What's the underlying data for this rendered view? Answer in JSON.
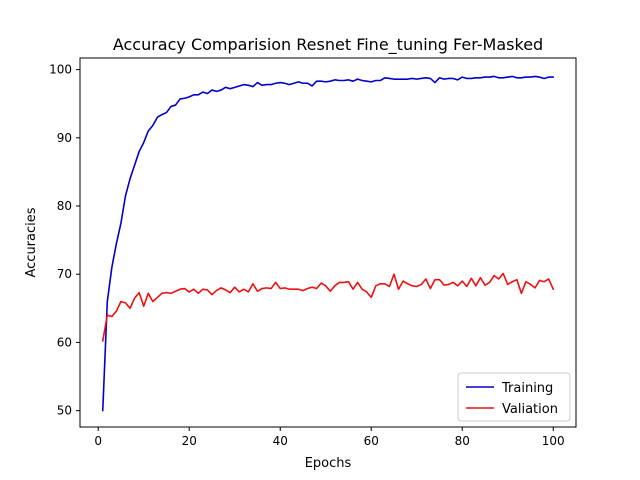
{
  "chart_data": {
    "type": "line",
    "title": "Accuracy Comparision Resnet Fine_tuning Fer-Masked",
    "xlabel": "Epochs",
    "ylabel": "Accuracies",
    "xlim": [
      -4,
      105
    ],
    "ylim": [
      47.6,
      101.7
    ],
    "xticks": [
      0,
      20,
      40,
      60,
      80,
      100
    ],
    "yticks": [
      50,
      60,
      70,
      80,
      90,
      100
    ],
    "grid": false,
    "legend_position": "lower-right",
    "series": [
      {
        "name": "Training",
        "color": "#0000cc",
        "x": [
          1,
          2,
          3,
          4,
          5,
          6,
          7,
          8,
          9,
          10,
          11,
          12,
          13,
          14,
          15,
          16,
          17,
          18,
          19,
          20,
          21,
          22,
          23,
          24,
          25,
          26,
          27,
          28,
          29,
          30,
          31,
          32,
          33,
          34,
          35,
          36,
          37,
          38,
          39,
          40,
          41,
          42,
          43,
          44,
          45,
          46,
          47,
          48,
          49,
          50,
          51,
          52,
          53,
          54,
          55,
          56,
          57,
          58,
          59,
          60,
          61,
          62,
          63,
          64,
          65,
          66,
          67,
          68,
          69,
          70,
          71,
          72,
          73,
          74,
          75,
          76,
          77,
          78,
          79,
          80,
          81,
          82,
          83,
          84,
          85,
          86,
          87,
          88,
          89,
          90,
          91,
          92,
          93,
          94,
          95,
          96,
          97,
          98,
          99,
          100
        ],
        "y": [
          50.0,
          66.0,
          71.0,
          74.5,
          77.5,
          81.5,
          84.0,
          86.0,
          88.0,
          89.3,
          91.0,
          91.8,
          93.0,
          93.4,
          93.7,
          94.6,
          94.8,
          95.7,
          95.8,
          96.0,
          96.3,
          96.3,
          96.7,
          96.5,
          97.0,
          96.8,
          97.0,
          97.4,
          97.2,
          97.4,
          97.6,
          97.8,
          97.7,
          97.5,
          98.1,
          97.7,
          97.8,
          97.8,
          98.0,
          98.1,
          98.0,
          97.8,
          98.0,
          98.2,
          98.0,
          98.0,
          97.6,
          98.3,
          98.3,
          98.2,
          98.3,
          98.5,
          98.4,
          98.4,
          98.5,
          98.3,
          98.6,
          98.4,
          98.3,
          98.2,
          98.4,
          98.4,
          98.8,
          98.7,
          98.6,
          98.6,
          98.6,
          98.6,
          98.7,
          98.6,
          98.7,
          98.8,
          98.7,
          98.1,
          98.8,
          98.6,
          98.7,
          98.7,
          98.5,
          98.9,
          98.7,
          98.7,
          98.8,
          98.8,
          98.9,
          98.9,
          99.0,
          98.8,
          98.8,
          98.9,
          99.0,
          98.8,
          98.8,
          98.9,
          98.9,
          99.0,
          98.9,
          98.7,
          98.9,
          98.9
        ]
      },
      {
        "name": "Valiation",
        "color": "#ee1111",
        "x": [
          1,
          2,
          3,
          4,
          5,
          6,
          7,
          8,
          9,
          10,
          11,
          12,
          13,
          14,
          15,
          16,
          17,
          18,
          19,
          20,
          21,
          22,
          23,
          24,
          25,
          26,
          27,
          28,
          29,
          30,
          31,
          32,
          33,
          34,
          35,
          36,
          37,
          38,
          39,
          40,
          41,
          42,
          43,
          44,
          45,
          46,
          47,
          48,
          49,
          50,
          51,
          52,
          53,
          54,
          55,
          56,
          57,
          58,
          59,
          60,
          61,
          62,
          63,
          64,
          65,
          66,
          67,
          68,
          69,
          70,
          71,
          72,
          73,
          74,
          75,
          76,
          77,
          78,
          79,
          80,
          81,
          82,
          83,
          84,
          85,
          86,
          87,
          88,
          89,
          90,
          91,
          92,
          93,
          94,
          95,
          96,
          97,
          98,
          99,
          100
        ],
        "y": [
          60.2,
          64.0,
          63.8,
          64.6,
          66.0,
          65.8,
          65.0,
          66.5,
          67.3,
          65.3,
          67.2,
          66.0,
          66.6,
          67.2,
          67.3,
          67.2,
          67.5,
          67.8,
          67.9,
          67.4,
          67.8,
          67.2,
          67.8,
          67.7,
          67.0,
          67.6,
          68.0,
          67.7,
          67.3,
          68.1,
          67.4,
          67.8,
          67.4,
          68.6,
          67.5,
          67.9,
          68.0,
          67.9,
          68.8,
          67.9,
          68.0,
          67.8,
          67.8,
          67.8,
          67.6,
          67.9,
          68.1,
          67.9,
          68.7,
          68.3,
          67.5,
          68.3,
          68.8,
          68.8,
          68.9,
          67.8,
          68.8,
          67.8,
          67.4,
          66.6,
          68.3,
          68.6,
          68.6,
          68.2,
          70.0,
          67.8,
          69.0,
          68.6,
          68.3,
          68.2,
          68.5,
          69.3,
          67.9,
          69.2,
          69.2,
          68.4,
          68.5,
          68.8,
          68.3,
          69.0,
          68.2,
          69.4,
          68.3,
          69.5,
          68.4,
          68.8,
          69.8,
          69.3,
          70.1,
          68.5,
          68.9,
          69.2,
          67.2,
          68.9,
          68.5,
          68.0,
          69.1,
          68.9,
          69.3,
          67.8
        ]
      }
    ]
  }
}
